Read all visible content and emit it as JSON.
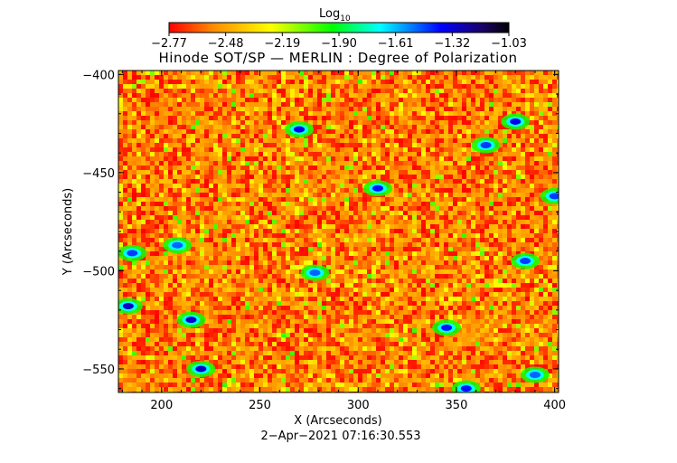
{
  "chart_data": {
    "type": "heatmap",
    "title": "Hinode SOT/SP — MERLIN : Degree of Polarization",
    "xlabel": "X (Arcseconds)",
    "ylabel": "Y (Arcseconds)",
    "xlim": [
      178,
      402
    ],
    "ylim": [
      -562,
      -398
    ],
    "x_ticks": [
      200,
      250,
      300,
      350,
      400
    ],
    "x_tick_labels": [
      "200",
      "250",
      "300",
      "350",
      "400"
    ],
    "y_ticks": [
      -400,
      -450,
      -500,
      -550
    ],
    "y_tick_labels": [
      "−400",
      "−450",
      "−500",
      "−550"
    ],
    "grid": false,
    "colorbar": {
      "label_base": "Log",
      "label_sub": "10",
      "colormap": "rainbow",
      "colors": [
        "#ff0000",
        "#ff8c00",
        "#ffff00",
        "#00ff00",
        "#00ffff",
        "#0000ff",
        "#1a0066",
        "#000000"
      ],
      "range": [
        -2.77,
        -1.03
      ],
      "ticks": [
        -2.77,
        -2.48,
        -2.19,
        -1.9,
        -1.61,
        -1.32,
        -1.03
      ],
      "tick_labels": [
        "−2.77",
        "−2.48",
        "−2.19",
        "−1.90",
        "−1.61",
        "−1.32",
        "−1.03"
      ],
      "position": "top"
    },
    "values_description": null,
    "features": [
      {
        "x": 215,
        "y": -525,
        "level": -1.3
      },
      {
        "x": 220,
        "y": -550,
        "level": -1.3
      },
      {
        "x": 183,
        "y": -518,
        "level": -1.3
      },
      {
        "x": 270,
        "y": -428,
        "level": -1.35
      },
      {
        "x": 310,
        "y": -458,
        "level": -1.4
      },
      {
        "x": 345,
        "y": -529,
        "level": -1.4
      },
      {
        "x": 380,
        "y": -424,
        "level": -1.35
      },
      {
        "x": 365,
        "y": -436,
        "level": -1.45
      },
      {
        "x": 385,
        "y": -495,
        "level": -1.45
      },
      {
        "x": 278,
        "y": -501,
        "level": -1.5
      },
      {
        "x": 208,
        "y": -487,
        "level": -1.5
      },
      {
        "x": 185,
        "y": -491,
        "level": -1.45
      },
      {
        "x": 355,
        "y": -560,
        "level": -1.4
      },
      {
        "x": 400,
        "y": -462,
        "level": -1.45
      },
      {
        "x": 390,
        "y": -553,
        "level": -1.5
      }
    ]
  },
  "footer": {
    "timestamp": "2−Apr−2021 07:16:30.553"
  }
}
